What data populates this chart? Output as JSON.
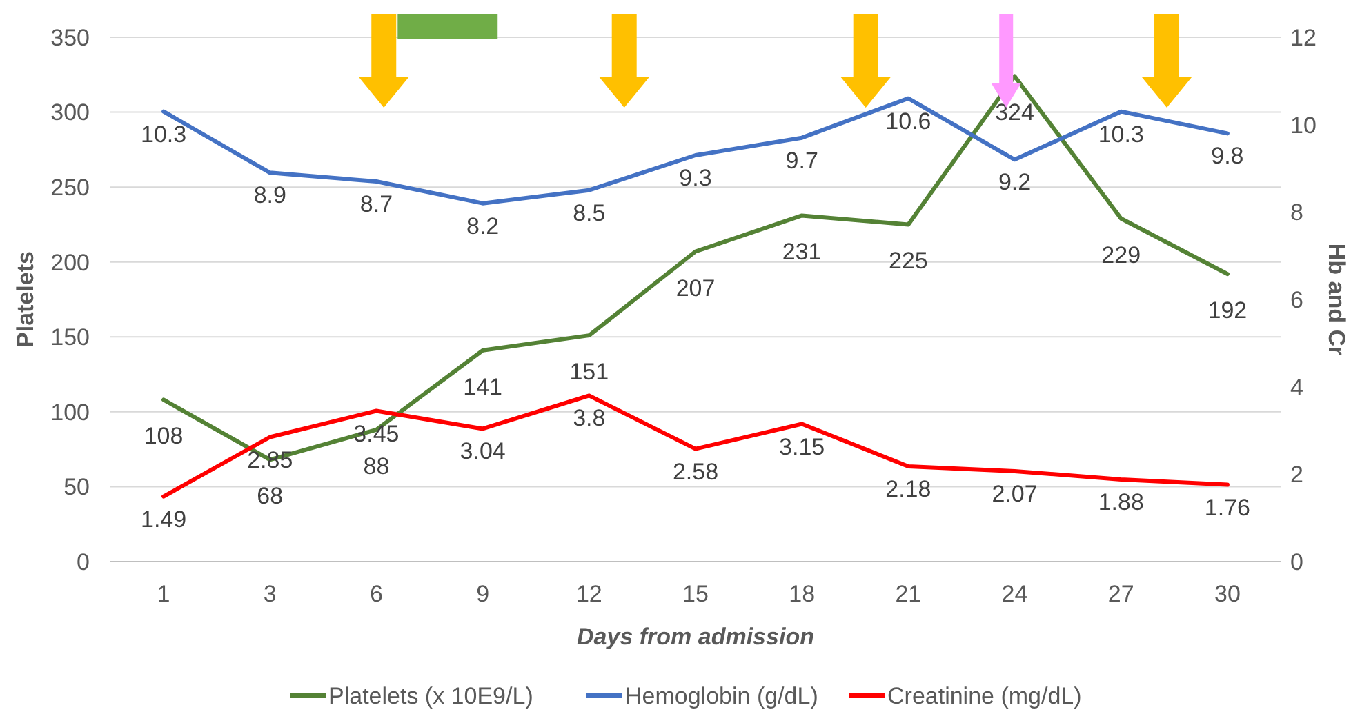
{
  "chart_data": {
    "type": "line",
    "categories": [
      "1",
      "3",
      "6",
      "9",
      "12",
      "15",
      "18",
      "21",
      "24",
      "27",
      "30"
    ],
    "xlabel": "Days from admission",
    "ylabel": "Platelets",
    "y2label": "Hb and Cr",
    "ylim": [
      0,
      350
    ],
    "yticks": [
      0,
      50,
      100,
      150,
      200,
      250,
      300,
      350
    ],
    "y2lim": [
      0,
      12
    ],
    "y2ticks": [
      0,
      2,
      4,
      6,
      8,
      10,
      12
    ],
    "grid": "y",
    "legend": "bottom",
    "marker": "none",
    "data_labels": true,
    "series": [
      {
        "name": "Platelets (x 10E9/L)",
        "color": "#548235",
        "values": [
          108,
          68,
          88,
          141,
          151,
          207,
          231,
          225,
          324,
          229,
          192
        ]
      },
      {
        "name": "Hemoglobin (g/dL)",
        "color": "#4472c4",
        "axis": "y2",
        "values": [
          10.3,
          8.9,
          8.7,
          8.2,
          8.5,
          9.3,
          9.7,
          10.6,
          9.2,
          10.3,
          9.8
        ]
      },
      {
        "name": "Creatinine (mg/dL)",
        "color": "#ff0000",
        "axis": "y2",
        "values": [
          1.49,
          2.85,
          3.45,
          3.04,
          3.8,
          2.58,
          3.15,
          2.18,
          2.07,
          1.88,
          1.76
        ]
      }
    ]
  }
}
